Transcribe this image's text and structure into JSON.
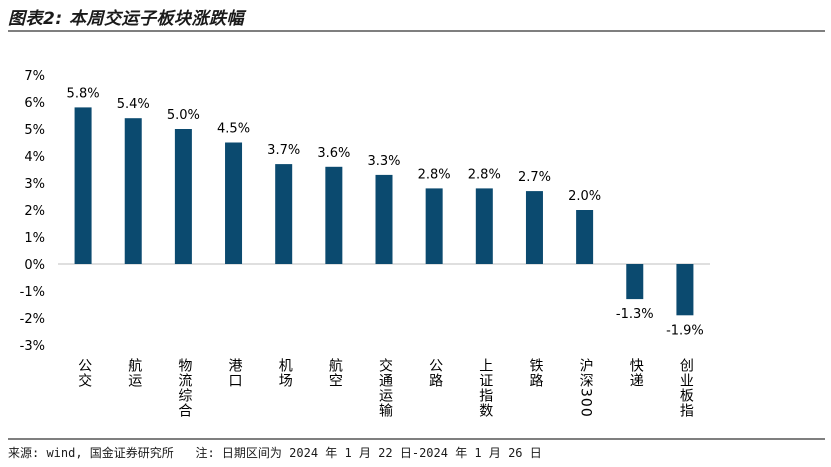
{
  "title": "图表2: 本周交运子板块涨跌幅",
  "source": "来源: wind, 国金证券研究所   注: 日期区间为 2024 年 1 月 22 日-2024 年 1 月 26 日",
  "chart_data": {
    "type": "bar",
    "title": "",
    "xlabel": "",
    "ylabel": "",
    "categories": [
      "公交",
      "航运",
      "物流综合",
      "港口",
      "机场",
      "航空",
      "交通运输",
      "公路",
      "上证指数",
      "铁路",
      "沪深300",
      "快递",
      "创业板指"
    ],
    "values": [
      5.8,
      5.4,
      5.0,
      4.5,
      3.7,
      3.6,
      3.3,
      2.8,
      2.8,
      2.7,
      2.0,
      -1.3,
      -1.9
    ],
    "value_labels": [
      "5.8%",
      "5.4%",
      "5.0%",
      "4.5%",
      "3.7%",
      "3.6%",
      "3.3%",
      "2.8%",
      "2.8%",
      "2.7%",
      "2.0%",
      "-1.3%",
      "-1.9%"
    ],
    "ylim": [
      -3,
      7
    ],
    "yticks": [
      7,
      6,
      5,
      4,
      3,
      2,
      1,
      0,
      -1,
      -2,
      -3
    ],
    "ytick_labels": [
      "7%",
      "6%",
      "5%",
      "4%",
      "3%",
      "2%",
      "1%",
      "0%",
      "-1%",
      "-2%",
      "-3%"
    ],
    "grid": false,
    "legend": "none",
    "bar_color": "#0b4a6f"
  }
}
